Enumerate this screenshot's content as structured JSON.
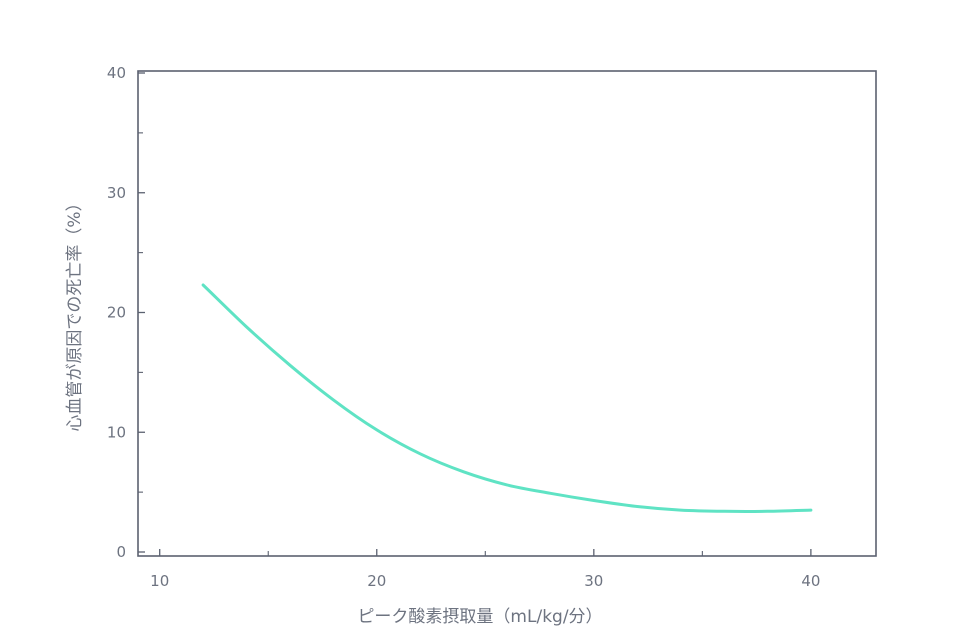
{
  "chart_data": {
    "type": "line",
    "title": "",
    "xlabel": "ピーク酸素摂取量（mL/kg/分）",
    "ylabel": "心血管が原因での死亡率（%）",
    "xlim": [
      9,
      43
    ],
    "ylim": [
      0,
      40
    ],
    "x_ticks": [
      10,
      20,
      30,
      40
    ],
    "y_ticks": [
      0,
      10,
      20,
      30,
      40
    ],
    "grid": false,
    "legend": "none",
    "series": [
      {
        "color": "#5fe3c4",
        "x": [
          12,
          14,
          16,
          18,
          20,
          22,
          24,
          26,
          28,
          30,
          32,
          34,
          36,
          38,
          40
        ],
        "y": [
          22.3,
          18.8,
          15.6,
          12.7,
          10.2,
          8.2,
          6.7,
          5.6,
          4.9,
          4.3,
          3.8,
          3.5,
          3.4,
          3.4,
          3.5
        ]
      }
    ]
  }
}
